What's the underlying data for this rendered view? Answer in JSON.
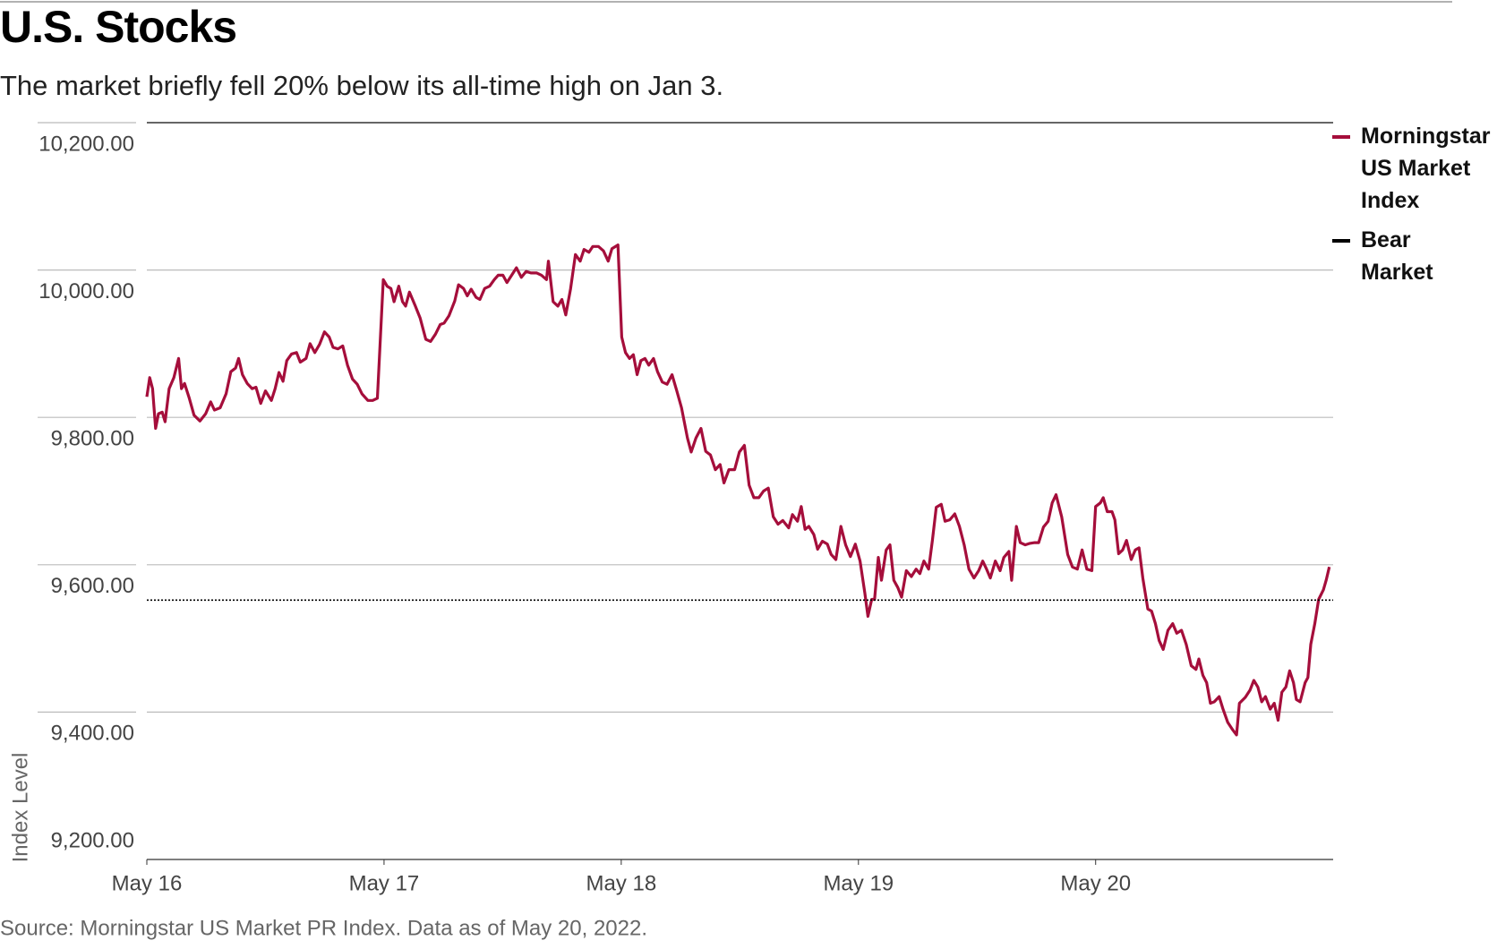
{
  "chart_data": {
    "type": "line",
    "title": "U.S. Stocks",
    "subtitle": "The market briefly fell 20% below its all-time high on Jan 3.",
    "y_label": "Index Level",
    "source": "Source: Morningstar US Market PR Index. Data as of May 20, 2022.",
    "ylim": [
      9200,
      10200
    ],
    "yticks": [
      {
        "value": 9200,
        "label": "9,200.00"
      },
      {
        "value": 9400,
        "label": "9,400.00"
      },
      {
        "value": 9600,
        "label": "9,600.00"
      },
      {
        "value": 9800,
        "label": "9,800.00"
      },
      {
        "value": 10000,
        "label": "10,000.00"
      },
      {
        "value": 10200,
        "label": "10,200.00"
      }
    ],
    "xlim": [
      0,
      4.99
    ],
    "xticks": [
      {
        "value": 0,
        "label": "May 16"
      },
      {
        "value": 1,
        "label": "May 17"
      },
      {
        "value": 2,
        "label": "May 18"
      },
      {
        "value": 3,
        "label": "May 19"
      },
      {
        "value": 4,
        "label": "May 20"
      }
    ],
    "grid": true,
    "legend": "right",
    "x": [
      0,
      0.012,
      0.024,
      0.037,
      0.049,
      0.065,
      0.077,
      0.094,
      0.114,
      0.134,
      0.146,
      0.159,
      0.179,
      0.199,
      0.224,
      0.248,
      0.269,
      0.285,
      0.309,
      0.334,
      0.354,
      0.374,
      0.387,
      0.403,
      0.423,
      0.444,
      0.46,
      0.48,
      0.5,
      0.525,
      0.541,
      0.557,
      0.574,
      0.59,
      0.61,
      0.631,
      0.647,
      0.671,
      0.688,
      0.708,
      0.728,
      0.749,
      0.769,
      0.785,
      0.806,
      0.826,
      0.846,
      0.867,
      0.887,
      0.907,
      0.932,
      0.952,
      0.972,
      0.997,
      1.013,
      1.029,
      1.042,
      1.062,
      1.078,
      1.091,
      1.107,
      1.131,
      1.152,
      1.176,
      1.196,
      1.217,
      1.237,
      1.253,
      1.274,
      1.298,
      1.314,
      1.335,
      1.351,
      1.367,
      1.388,
      1.404,
      1.424,
      1.445,
      1.465,
      1.481,
      1.501,
      1.518,
      1.538,
      1.558,
      1.579,
      1.599,
      1.619,
      1.644,
      1.664,
      1.685,
      1.693,
      1.713,
      1.733,
      1.75,
      1.766,
      1.786,
      1.807,
      1.827,
      1.843,
      1.864,
      1.88,
      1.904,
      1.925,
      1.945,
      1.961,
      1.986,
      2.002,
      2.018,
      2.035,
      2.051,
      2.067,
      2.083,
      2.1,
      2.116,
      2.136,
      2.153,
      2.173,
      2.193,
      2.214,
      2.234,
      2.254,
      2.279,
      2.295,
      2.315,
      2.336,
      2.356,
      2.376,
      2.397,
      2.417,
      2.433,
      2.454,
      2.478,
      2.498,
      2.519,
      2.539,
      2.559,
      2.58,
      2.6,
      2.62,
      2.641,
      2.661,
      2.681,
      2.706,
      2.722,
      2.743,
      2.759,
      2.775,
      2.791,
      2.812,
      2.828,
      2.848,
      2.869,
      2.885,
      2.905,
      2.926,
      2.946,
      2.966,
      2.987,
      3.007,
      3.027,
      3.04,
      3.056,
      3.068,
      3.084,
      3.097,
      3.117,
      3.133,
      3.149,
      3.166,
      3.182,
      3.202,
      3.223,
      3.243,
      3.259,
      3.276,
      3.296,
      3.312,
      3.328,
      3.349,
      3.365,
      3.385,
      3.406,
      3.426,
      3.446,
      3.466,
      3.487,
      3.507,
      3.524,
      3.54,
      3.556,
      3.577,
      3.597,
      3.613,
      3.634,
      3.646,
      3.666,
      3.682,
      3.703,
      3.723,
      3.743,
      3.76,
      3.78,
      3.8,
      3.817,
      3.833,
      3.857,
      3.882,
      3.902,
      3.923,
      3.943,
      3.963,
      3.984,
      4,
      4.02,
      4.032,
      4.049,
      4.069,
      4.081,
      4.097,
      4.114,
      4.13,
      4.15,
      4.167,
      4.183,
      4.199,
      4.22,
      4.236,
      4.252,
      4.268,
      4.285,
      4.305,
      4.325,
      4.342,
      4.362,
      4.382,
      4.403,
      4.423,
      4.435,
      4.452,
      4.468,
      4.484,
      4.5,
      4.521,
      4.537,
      4.557,
      4.578,
      4.594,
      4.606,
      4.631,
      4.651,
      4.667,
      4.684,
      4.7,
      4.716,
      4.736,
      4.753,
      4.769,
      4.785,
      4.802,
      4.818,
      4.834,
      4.846,
      4.862,
      4.883,
      4.895,
      4.907,
      4.924,
      4.94,
      4.96,
      4.972,
      4.985
    ],
    "series": [
      {
        "name": "Morningstar US Market Index",
        "color": "#a50e3b",
        "values": [
          9828,
          9854,
          9839,
          9785,
          9805,
          9807,
          9794,
          9839,
          9854,
          9880,
          9839,
          9846,
          9826,
          9803,
          9795,
          9805,
          9821,
          9810,
          9813,
          9832,
          9862,
          9867,
          9880,
          9858,
          9846,
          9839,
          9841,
          9819,
          9836,
          9823,
          9839,
          9861,
          9849,
          9877,
          9886,
          9888,
          9875,
          9880,
          9900,
          9888,
          9899,
          9916,
          9909,
          9895,
          9893,
          9897,
          9871,
          9852,
          9845,
          9832,
          9823,
          9823,
          9826,
          9987,
          9978,
          9975,
          9957,
          9978,
          9957,
          9951,
          9970,
          9952,
          9935,
          9906,
          9903,
          9913,
          9926,
          9928,
          9938,
          9958,
          9980,
          9975,
          9965,
          9974,
          9963,
          9960,
          9975,
          9978,
          9987,
          9993,
          9993,
          9983,
          9993,
          10003,
          9990,
          9998,
          9996,
          9996,
          9993,
          9987,
          10012,
          9957,
          9951,
          9960,
          9939,
          9974,
          10021,
          10012,
          10028,
          10024,
          10032,
          10032,
          10026,
          10012,
          10029,
          10034,
          9909,
          9888,
          9880,
          9885,
          9858,
          9877,
          9880,
          9871,
          9880,
          9862,
          9848,
          9845,
          9858,
          9836,
          9813,
          9772,
          9753,
          9772,
          9785,
          9754,
          9749,
          9729,
          9736,
          9711,
          9729,
          9729,
          9753,
          9762,
          9708,
          9691,
          9691,
          9700,
          9704,
          9665,
          9655,
          9660,
          9650,
          9668,
          9659,
          9679,
          9648,
          9652,
          9641,
          9621,
          9632,
          9628,
          9614,
          9607,
          9652,
          9627,
          9611,
          9628,
          9605,
          9562,
          9530,
          9553,
          9553,
          9610,
          9579,
          9620,
          9627,
          9579,
          9569,
          9556,
          9592,
          9584,
          9594,
          9588,
          9605,
          9594,
          9633,
          9678,
          9682,
          9659,
          9661,
          9669,
          9652,
          9627,
          9594,
          9582,
          9592,
          9605,
          9594,
          9582,
          9605,
          9592,
          9610,
          9618,
          9579,
          9652,
          9630,
          9627,
          9629,
          9630,
          9630,
          9651,
          9659,
          9684,
          9695,
          9665,
          9614,
          9597,
          9594,
          9620,
          9594,
          9592,
          9679,
          9684,
          9691,
          9672,
          9672,
          9661,
          9615,
          9620,
          9633,
          9607,
          9620,
          9623,
          9582,
          9540,
          9537,
          9520,
          9497,
          9485,
          9511,
          9520,
          9507,
          9511,
          9492,
          9463,
          9458,
          9472,
          9450,
          9440,
          9412,
          9414,
          9421,
          9404,
          9386,
          9376,
          9369,
          9412,
          9420,
          9430,
          9443,
          9434,
          9414,
          9421,
          9404,
          9412,
          9389,
          9427,
          9434,
          9456,
          9440,
          9417,
          9414,
          9440,
          9447,
          9492,
          9520,
          9553,
          9566,
          9579,
          9597
        ]
      },
      {
        "name": "Bear Market",
        "color": "#000000",
        "value": 9552
      }
    ]
  }
}
